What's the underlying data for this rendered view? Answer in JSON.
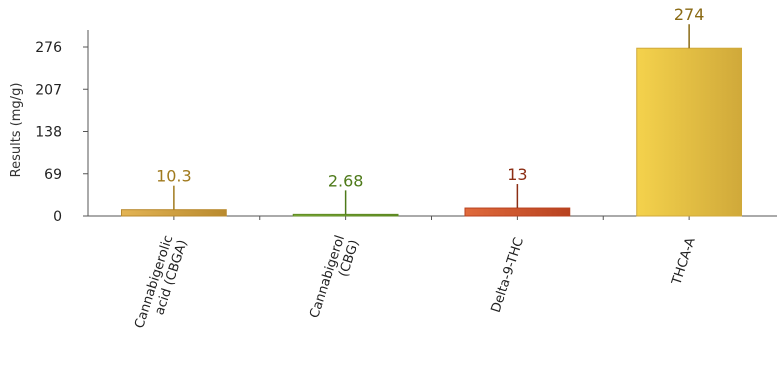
{
  "chart_data": {
    "type": "bar",
    "title": "",
    "xlabel": "",
    "ylabel": "Results (mg/g)",
    "ylim": [
      0,
      276
    ],
    "yticks": [
      "0",
      "69",
      "138",
      "207",
      "276"
    ],
    "grid": false,
    "categories": [
      {
        "lines": [
          "Cannabigerolic",
          "acid (CBGA)"
        ]
      },
      {
        "lines": [
          "Cannabigerol",
          "(CBG)"
        ]
      },
      {
        "lines": [
          "Delta-9-THC"
        ]
      },
      {
        "lines": [
          "THCA-A"
        ]
      }
    ],
    "values": [
      10.3,
      2.68,
      13,
      274
    ],
    "value_labels": [
      "10.3",
      "2.68",
      "13",
      "274"
    ],
    "colors": [
      {
        "light": "#E3B454",
        "dark": "#B98A2E",
        "label": "#A07A1E"
      },
      {
        "light": "#8FBE46",
        "dark": "#5E8A22",
        "label": "#4E7A1A"
      },
      {
        "light": "#E06A3C",
        "dark": "#B84220",
        "label": "#8C2E14"
      },
      {
        "light": "#F4D24C",
        "dark": "#D0A93A",
        "label": "#8A6A14"
      }
    ]
  }
}
